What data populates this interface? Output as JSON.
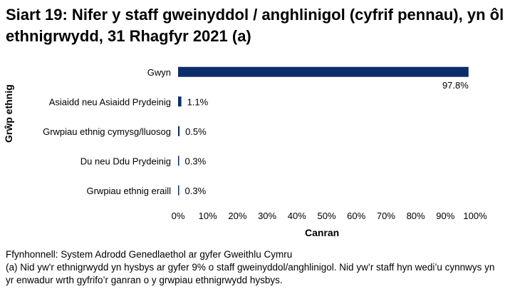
{
  "title": "Siart 19: Nifer y staff gweinyddol / anghlinigol (cyfrif pennau), yn ôl ethnigrwydd, 31 Rhagfyr 2021 (a)",
  "colors": {
    "bar": "#0b2d6b",
    "text": "#000000"
  },
  "chart_data": {
    "type": "bar",
    "orientation": "horizontal",
    "title": "Siart 19: Nifer y staff gweinyddol / anghlinigol (cyfrif pennau), yn ôl ethnigrwydd, 31 Rhagfyr 2021 (a)",
    "xlabel": "Canran",
    "ylabel": "Grŵp ethnig",
    "categories": [
      "Gwyn",
      "Asiaidd neu Asiaidd Prydeinig",
      "Grwpiau ethnig cymysg/lluosog",
      "Du neu Ddu Prydeinig",
      "Grwpiau ethnig eraill"
    ],
    "values": [
      97.8,
      1.1,
      0.5,
      0.3,
      0.3
    ],
    "data_labels": [
      "97.8%",
      "1.1%",
      "0.5%",
      "0.3%",
      "0.3%"
    ],
    "xlim": [
      0,
      100
    ],
    "ticks": [
      "0%",
      "10%",
      "20%",
      "30%",
      "40%",
      "50%",
      "60%",
      "70%",
      "80%",
      "90%",
      "100%"
    ],
    "grid": false,
    "legend": "none"
  },
  "footer": {
    "source": "Ffynhonnell: System Adrodd Genedlaethol ar gyfer Gweithlu Cymru",
    "note": "(a) Nid yw'r ethnigrwydd yn hysbys ar gyfer 9% o staff gweinyddol/anghlinigol. Nid yw’r staff hyn wedi’u cynnwys yn yr enwadur wrth gyfrifo’r ganran o y grwpiau ethnigrwydd hysbys."
  }
}
